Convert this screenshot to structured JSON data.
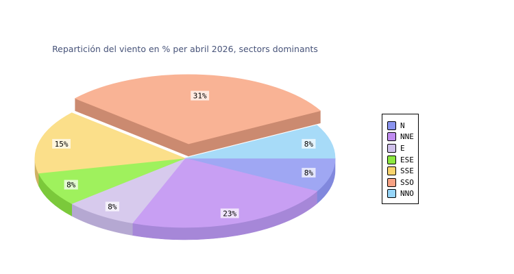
{
  "title": {
    "text": "Repartición del viento en % per abril 2026, sectors dominants",
    "color": "#475379"
  },
  "chart_data": {
    "type": "pie",
    "style": "3d-exploded-pie",
    "unit": "%",
    "categories": [
      "N",
      "NNE",
      "E",
      "ESE",
      "SSE",
      "SSO",
      "NNO"
    ],
    "values": [
      8,
      23,
      8,
      8,
      15,
      31,
      8
    ],
    "value_labels": [
      "8%",
      "23%",
      "8%",
      "8%",
      "15%",
      "31%",
      "8%"
    ],
    "exploded_category": "SSO",
    "start_angle_deg_clockwise_from_east": 0,
    "legend_position": "right",
    "colors_top": [
      "#9fa7f3",
      "#c89ff3",
      "#d7caed",
      "#9ff15d",
      "#fbdf8a",
      "#f9b395",
      "#a7dbf8"
    ],
    "colors_side": [
      "#8188dd",
      "#a687d8",
      "#b5a8d2",
      "#7bc93b",
      "#cfb263",
      "#cb8a70",
      "#8ec2e6"
    ],
    "colors_legend": [
      "#8a93ee",
      "#c08cf0",
      "#cfc0ea",
      "#8ce840",
      "#f9d46e",
      "#f7a284",
      "#96d5f8"
    ],
    "label_text_color": "#000000",
    "label_bg": "rgba(255,255,255,0.72)"
  },
  "legend": {
    "border_color": "#000000",
    "background": "#ffffff"
  }
}
